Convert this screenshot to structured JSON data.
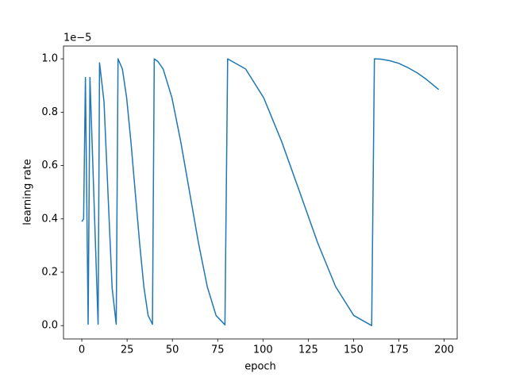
{
  "chart_data": {
    "type": "line",
    "x_label": "epoch",
    "y_label": "learning rate",
    "y_offset_text": "1e−5",
    "xlim": [
      -10.1,
      207.2
    ],
    "ylim": [
      -0.05,
      1.048
    ],
    "xticks": [
      0,
      25,
      50,
      75,
      100,
      125,
      150,
      175,
      200
    ],
    "yticks": [
      {
        "value": 0,
        "label": "0.0"
      },
      {
        "value": 0.2,
        "label": "0.2"
      },
      {
        "value": 0.4,
        "label": "0.4"
      },
      {
        "value": 0.6,
        "label": "0.6"
      },
      {
        "value": 0.8,
        "label": "0.8"
      },
      {
        "value": 1.0,
        "label": "1.0"
      }
    ],
    "x": [
      0,
      1,
      2,
      3.5,
      4.5,
      9,
      9.8,
      12.25,
      14.5,
      16.75,
      19,
      20,
      22.4,
      24.75,
      27.1,
      29.5,
      31.9,
      34.25,
      36.6,
      39,
      40,
      42,
      44.9,
      49.75,
      54.6,
      59.5,
      64.4,
      69.25,
      74.1,
      79,
      80.5,
      90.4,
      100.4,
      110.3,
      120.3,
      130.2,
      140.1,
      150.1,
      160,
      161.5,
      165,
      170,
      175,
      180,
      185,
      190,
      197
    ],
    "series": [
      {
        "color": "#1f77b4",
        "values": [
          0.39,
          0.4,
          0.93,
          0.005,
          0.93,
          0.005,
          0.985,
          0.84,
          0.49,
          0.14,
          0.005,
          1.0,
          0.962,
          0.854,
          0.69,
          0.5,
          0.31,
          0.146,
          0.038,
          0.005,
          1.0,
          0.99,
          0.962,
          0.854,
          0.69,
          0.5,
          0.31,
          0.146,
          0.038,
          0.003,
          1.0,
          0.962,
          0.854,
          0.69,
          0.5,
          0.31,
          0.146,
          0.038,
          0.0,
          1.0,
          0.999,
          0.993,
          0.983,
          0.967,
          0.948,
          0.924,
          0.885
        ]
      }
    ]
  }
}
